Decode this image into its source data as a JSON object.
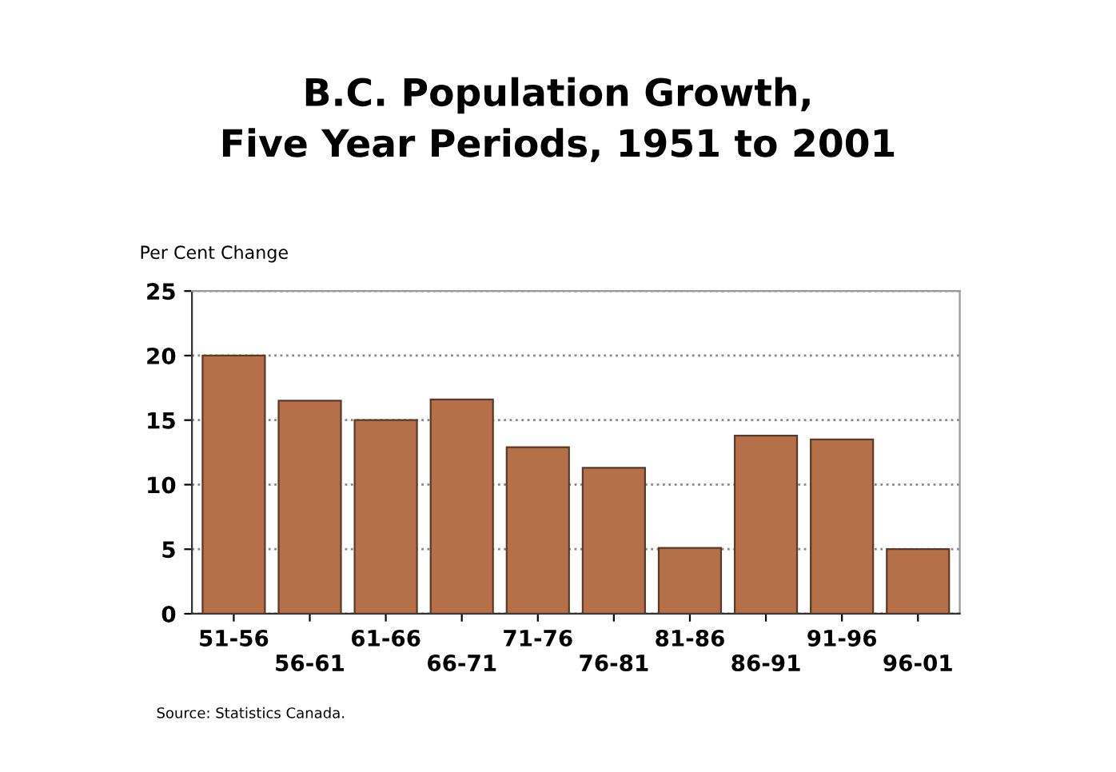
{
  "chart_data": {
    "type": "bar",
    "title": "B.C. Population Growth,\nFive Year Periods, 1951 to 2001",
    "ylabel": "Per Cent Change",
    "categories": [
      "51-56",
      "56-61",
      "61-66",
      "66-71",
      "71-76",
      "76-81",
      "81-86",
      "86-91",
      "91-96",
      "96-01"
    ],
    "values": [
      20.0,
      16.5,
      15.0,
      16.6,
      12.9,
      11.3,
      5.1,
      13.8,
      13.5,
      5.0
    ],
    "color": "#b5704a",
    "ylim": [
      0,
      25
    ],
    "yticks": [
      0,
      5,
      10,
      15,
      20,
      25
    ],
    "grid": "y",
    "line_style": "dotted",
    "annotations": [
      "Source: Statistics Canada."
    ]
  }
}
